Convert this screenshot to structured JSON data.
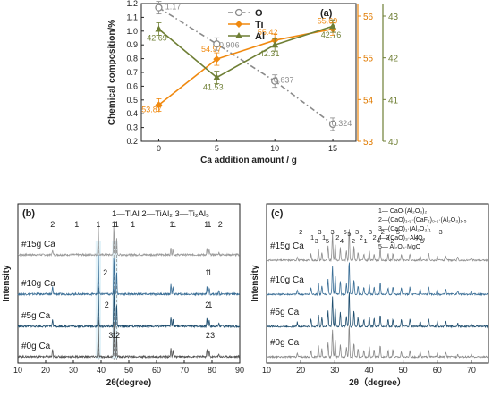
{
  "chart_data": [
    {
      "type": "line",
      "panel": "(a)",
      "xlabel": "Ca addition amount / g",
      "ylabel": "Chemical composition/%",
      "x": [
        0,
        5,
        10,
        15
      ],
      "xlim": [
        -1.5,
        17
      ],
      "ylim": [
        0.2,
        1.2
      ],
      "y2lim": [
        53,
        56.3
      ],
      "y3lim": [
        40,
        43.3
      ],
      "grid": false,
      "legend": "top-center",
      "xticks": [
        "0",
        "5",
        "10",
        "15"
      ],
      "yticks": [
        "0.2",
        "0.3",
        "0.4",
        "0.5",
        "0.6",
        "0.7",
        "0.8",
        "0.9",
        "1.0",
        "1.1",
        "1.2"
      ],
      "y2ticks": [
        "53",
        "54",
        "55",
        "56"
      ],
      "y3ticks": [
        "40",
        "41",
        "42",
        "43"
      ],
      "series": [
        {
          "name": "O",
          "axis": "left",
          "color": "#8a8a8a",
          "values": [
            1.17,
            0.906,
            0.637,
            0.324
          ],
          "labels": [
            "1.17",
            "0.906",
            "0.637",
            "0.324"
          ]
        },
        {
          "name": "Ti",
          "axis": "right1",
          "color": "#f0890f",
          "values": [
            53.87,
            54.97,
            55.42,
            55.69
          ],
          "labels": [
            "53.87",
            "54.97",
            "55.42",
            "55.69"
          ]
        },
        {
          "name": "Al",
          "axis": "right2",
          "color": "#6f7f35",
          "values": [
            42.69,
            41.53,
            42.31,
            42.76
          ],
          "labels": [
            "42.69",
            "41.53",
            "42.31",
            "42.76"
          ]
        }
      ]
    },
    {
      "type": "line",
      "panel": "(b)",
      "xlabel": "2θ(degree)",
      "ylabel": "Intensity",
      "xlim": [
        10,
        90
      ],
      "xticks": [
        "10",
        "20",
        "30",
        "40",
        "50",
        "60",
        "70",
        "80",
        "90"
      ],
      "legend_text": "1—TiAl  2—TiAl₂  3—Ti₂Al₅",
      "series_names": [
        "#15g Ca",
        "#10g Ca",
        "#5g Ca",
        "#0g Ca"
      ],
      "series_colors": [
        "#999999",
        "#3a6e96",
        "#1f4e6f",
        "#555555"
      ],
      "peaks": [
        {
          "x": 22.5,
          "h": 0.18
        },
        {
          "x": 39.0,
          "h": 1.0
        },
        {
          "x": 44.6,
          "h": 0.95
        },
        {
          "x": 45.6,
          "h": 0.55
        },
        {
          "x": 65.2,
          "h": 0.22
        },
        {
          "x": 65.9,
          "h": 0.18
        },
        {
          "x": 78.2,
          "h": 0.2
        },
        {
          "x": 79.0,
          "h": 0.16
        },
        {
          "x": 82.5,
          "h": 0.08
        }
      ],
      "annotations": {
        "s15": [
          {
            "x": 22.5,
            "t": "2"
          },
          {
            "x": 31.2,
            "t": "1"
          },
          {
            "x": 39.0,
            "t": "1"
          },
          {
            "x": 44.6,
            "t": "1"
          },
          {
            "x": 45.6,
            "t": "1"
          },
          {
            "x": 51.5,
            "t": "1"
          },
          {
            "x": 65.5,
            "t": "1"
          },
          {
            "x": 66.3,
            "t": "1"
          },
          {
            "x": 78.0,
            "t": "1"
          },
          {
            "x": 79.0,
            "t": "1"
          },
          {
            "x": 83.0,
            "t": "2"
          }
        ],
        "s10": [
          {
            "x": 41.5,
            "t": "2"
          },
          {
            "x": 78.3,
            "t": "1"
          },
          {
            "x": 79.2,
            "t": "1"
          }
        ],
        "s5": [
          {
            "x": 42.0,
            "t": "2"
          },
          {
            "x": 78.3,
            "t": "2"
          },
          {
            "x": 79.3,
            "t": "1"
          }
        ],
        "s0": [
          {
            "x": 43.5,
            "t": "3"
          },
          {
            "x": 44.8,
            "t": "1"
          },
          {
            "x": 46.0,
            "t": "2"
          },
          {
            "x": 78.5,
            "t": "2"
          },
          {
            "x": 80.2,
            "t": "3"
          }
        ]
      }
    },
    {
      "type": "line",
      "panel": "(c)",
      "xlabel": "2θ（degree）",
      "ylabel": "Intensity",
      "xlim": [
        10,
        75
      ],
      "xticks": [
        "10",
        "20",
        "30",
        "40",
        "50",
        "60",
        "70"
      ],
      "legend_items": [
        "1— CaO·(Al₂O₃)₂",
        "2—(CaO)₁.₉·(CaF₂)₀.₁·(Al₂O₃)₁.₅",
        "3—(CaO)₁·(Al₂O₃)₁",
        "4—(CaO)₃·Al₂O₃",
        "5— Al₂O₃·MgO"
      ],
      "series_names": [
        "#15g Ca",
        "#10g Ca",
        "#5g Ca",
        "#0g Ca"
      ],
      "series_colors": [
        "#8e8e8e",
        "#3a6e96",
        "#1f4e6f",
        "#888888"
      ],
      "peaks": [
        {
          "x": 19.0,
          "h": 0.12
        },
        {
          "x": 23.0,
          "h": 0.2
        },
        {
          "x": 25.2,
          "h": 0.35
        },
        {
          "x": 26.2,
          "h": 0.25
        },
        {
          "x": 28.0,
          "h": 0.45
        },
        {
          "x": 29.3,
          "h": 0.85
        },
        {
          "x": 30.1,
          "h": 0.55
        },
        {
          "x": 31.6,
          "h": 0.4
        },
        {
          "x": 33.4,
          "h": 0.3
        },
        {
          "x": 34.2,
          "h": 1.0
        },
        {
          "x": 35.6,
          "h": 0.45
        },
        {
          "x": 36.8,
          "h": 0.25
        },
        {
          "x": 38.5,
          "h": 0.2
        },
        {
          "x": 40.1,
          "h": 0.3
        },
        {
          "x": 41.5,
          "h": 0.22
        },
        {
          "x": 43.3,
          "h": 0.35
        },
        {
          "x": 45.6,
          "h": 0.2
        },
        {
          "x": 47.0,
          "h": 0.22
        },
        {
          "x": 49.5,
          "h": 0.18
        },
        {
          "x": 52.0,
          "h": 0.2
        },
        {
          "x": 55.0,
          "h": 0.15
        },
        {
          "x": 57.5,
          "h": 0.22
        },
        {
          "x": 60.0,
          "h": 0.12
        },
        {
          "x": 62.5,
          "h": 0.15
        },
        {
          "x": 66.0,
          "h": 0.1
        },
        {
          "x": 70.0,
          "h": 0.08
        }
      ],
      "annotations": [
        {
          "x": 20.0,
          "t": "2"
        },
        {
          "x": 23.4,
          "t": "1"
        },
        {
          "x": 24.6,
          "t": "3"
        },
        {
          "x": 25.6,
          "t": "3"
        },
        {
          "x": 26.8,
          "t": "1"
        },
        {
          "x": 27.8,
          "t": "5"
        },
        {
          "x": 29.3,
          "t": "3"
        },
        {
          "x": 30.8,
          "t": "2"
        },
        {
          "x": 32.0,
          "t": "4"
        },
        {
          "x": 33.0,
          "t": "5"
        },
        {
          "x": 34.2,
          "t": "5"
        },
        {
          "x": 35.4,
          "t": "2"
        },
        {
          "x": 36.5,
          "t": "3"
        },
        {
          "x": 37.7,
          "t": "2"
        },
        {
          "x": 39.0,
          "t": "1"
        },
        {
          "x": 40.4,
          "t": "3"
        },
        {
          "x": 41.6,
          "t": "2"
        },
        {
          "x": 42.8,
          "t": "4"
        },
        {
          "x": 44.0,
          "t": "2"
        },
        {
          "x": 45.5,
          "t": "3"
        },
        {
          "x": 46.8,
          "t": "2"
        },
        {
          "x": 48.5,
          "t": "5"
        },
        {
          "x": 54.0,
          "t": "4"
        },
        {
          "x": 55.6,
          "t": "5"
        },
        {
          "x": 61.0,
          "t": "3"
        }
      ]
    }
  ]
}
